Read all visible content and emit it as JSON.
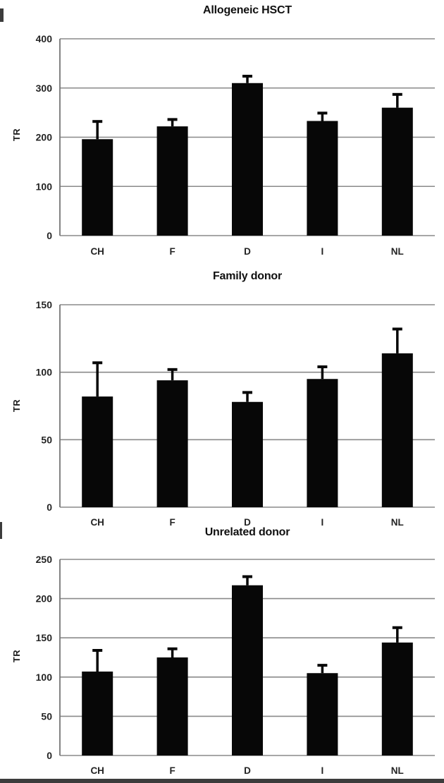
{
  "figure": {
    "background": "#ffffff",
    "panel_count": 3
  },
  "style": {
    "bar_color": "#070707",
    "grid_color": "#8a8a8a",
    "axis_color": "#757575",
    "text_color": "#242424",
    "title_color": "#101010"
  },
  "chart_data": [
    {
      "type": "bar",
      "title": "Allogeneic HSCT",
      "ylabel": "TR",
      "xlabel": "",
      "categories": [
        "CH",
        "F",
        "D",
        "I",
        "NL"
      ],
      "values": [
        196,
        222,
        310,
        233,
        260
      ],
      "errors_plus": [
        36,
        14,
        14,
        16,
        27
      ],
      "ylim": [
        0,
        400
      ],
      "yticks": [
        0,
        100,
        200,
        300,
        400
      ],
      "grid": true,
      "legend": "none",
      "bar_color": "#070707"
    },
    {
      "type": "bar",
      "title": "Family donor",
      "ylabel": "TR",
      "xlabel": "",
      "categories": [
        "CH",
        "F",
        "D",
        "I",
        "NL"
      ],
      "values": [
        82,
        94,
        78,
        95,
        114
      ],
      "errors_plus": [
        25,
        8,
        7,
        9,
        18
      ],
      "ylim": [
        0,
        150
      ],
      "yticks": [
        0,
        50,
        100,
        150
      ],
      "grid": true,
      "legend": "none",
      "bar_color": "#070707"
    },
    {
      "type": "bar",
      "title": "Unrelated donor",
      "ylabel": "TR",
      "xlabel": "",
      "categories": [
        "CH",
        "F",
        "D",
        "I",
        "NL"
      ],
      "values": [
        107,
        125,
        217,
        105,
        144
      ],
      "errors_plus": [
        27,
        11,
        11,
        10,
        19
      ],
      "ylim": [
        0,
        250
      ],
      "yticks": [
        0,
        50,
        100,
        150,
        200,
        250
      ],
      "grid": true,
      "legend": "none",
      "bar_color": "#070707"
    }
  ]
}
